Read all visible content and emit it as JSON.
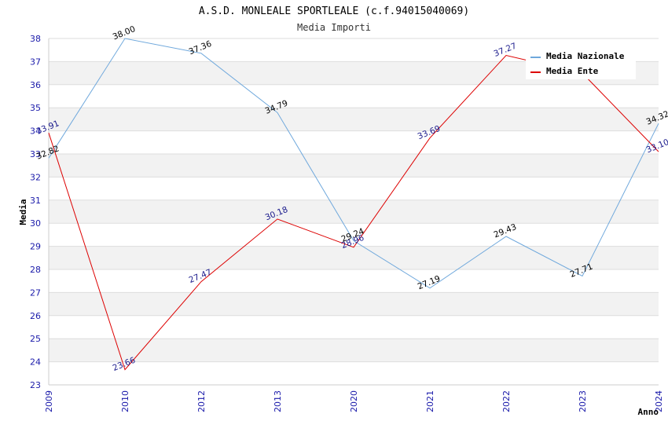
{
  "chart_data": {
    "type": "line",
    "title": "A.S.D. MONLEALE SPORTLEALE (c.f.94015040069)",
    "subtitle": "Media Importi",
    "xlabel": "Anno",
    "ylabel": "Media",
    "ylim": [
      23,
      38
    ],
    "yticks": [
      "23",
      "24",
      "25",
      "26",
      "27",
      "28",
      "29",
      "30",
      "31",
      "32",
      "33",
      "34",
      "35",
      "36",
      "37",
      "38"
    ],
    "categories": [
      "2009",
      "2010",
      "2012",
      "2013",
      "2020",
      "2021",
      "2022",
      "2023",
      "2024"
    ],
    "legend_position": "top-right",
    "grid": true,
    "series": [
      {
        "name": "Media Nazionale",
        "color": "#6fa8dc",
        "label_color": "#000000",
        "values": [
          32.82,
          38.0,
          37.36,
          34.79,
          29.24,
          27.19,
          29.43,
          27.71,
          34.32
        ],
        "labels": [
          "32.82",
          "38.00",
          "37.36",
          "34.79",
          "29.24",
          "27.19",
          "29.43",
          "27.71",
          "34.32"
        ]
      },
      {
        "name": "Media Ente",
        "color": "#dd0000",
        "label_color": "#1a1a8c",
        "values": [
          33.91,
          23.66,
          27.47,
          30.18,
          28.96,
          33.69,
          37.27,
          36.5,
          33.1
        ],
        "labels": [
          "33.91",
          "23.66",
          "27.47",
          "30.18",
          "28.96",
          "33.69",
          "37.27",
          "",
          "33.10"
        ]
      }
    ]
  }
}
